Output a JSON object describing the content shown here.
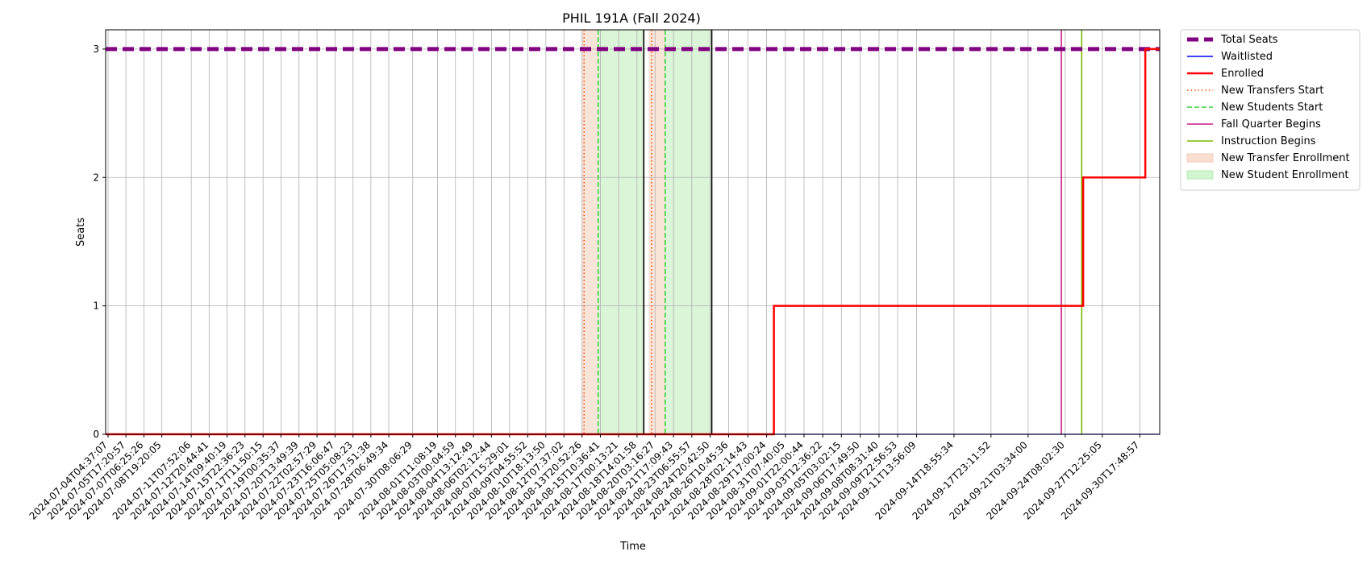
{
  "chart_data": {
    "type": "line",
    "title": "PHIL 191A (Fall 2024)",
    "xlabel": "Time",
    "ylabel": "Seats",
    "ylim": [
      0,
      3.15
    ],
    "yticks": [
      0,
      1,
      2,
      3
    ],
    "xlim": [
      "2024-07-03T23:35:00",
      "2024-10-02T10:40:00"
    ],
    "grid": true,
    "legend_position": "outside-top-right",
    "xtick_labels": [
      "2024-07-04T04:37:07",
      "2024-07-05T17:20:57",
      "2024-07-07T06:25:26",
      "2024-07-08T19:20:05",
      "2024-07-11T07:52:06",
      "2024-07-12T20:44:41",
      "2024-07-14T09:40:19",
      "2024-07-15T22:36:23",
      "2024-07-17T11:50:15",
      "2024-07-19T00:35:37",
      "2024-07-20T13:49:39",
      "2024-07-22T02:57:29",
      "2024-07-23T16:06:47",
      "2024-07-25T05:08:23",
      "2024-07-26T17:51:38",
      "2024-07-28T06:49:34",
      "2024-07-30T08:06:29",
      "2024-08-01T11:08:19",
      "2024-08-03T00:04:59",
      "2024-08-04T13:12:49",
      "2024-08-06T02:12:44",
      "2024-08-07T15:29:01",
      "2024-08-09T04:55:52",
      "2024-08-10T18:13:50",
      "2024-08-12T07:37:02",
      "2024-08-13T20:52:26",
      "2024-08-15T10:36:41",
      "2024-08-17T00:13:21",
      "2024-08-18T14:01:58",
      "2024-08-20T03:16:27",
      "2024-08-21T17:09:43",
      "2024-08-23T06:55:57",
      "2024-08-24T20:42:50",
      "2024-08-26T10:45:36",
      "2024-08-28T02:14:43",
      "2024-08-29T17:00:24",
      "2024-08-31T07:40:05",
      "2024-09-01T22:00:44",
      "2024-09-03T12:36:22",
      "2024-09-05T03:02:15",
      "2024-09-06T17:49:50",
      "2024-09-08T08:31:40",
      "2024-09-09T22:56:53",
      "2024-09-11T13:56:09",
      "2024-09-14T18:55:34",
      "2024-09-17T23:11:52",
      "2024-09-21T03:34:00",
      "2024-09-24T08:02:30",
      "2024-09-27T12:25:05",
      "2024-09-30T17:48:57"
    ],
    "series": [
      {
        "name": "Total Seats",
        "color": "#800080",
        "style": "dashed-thick",
        "x": [
          "2024-07-03T23:35:00",
          "2024-10-02T10:40:00"
        ],
        "y": [
          3,
          3
        ]
      },
      {
        "name": "Waitlisted",
        "color": "#0000ff",
        "style": "solid-thin",
        "x": [
          "2024-07-03T23:35:00",
          "2024-10-02T10:40:00"
        ],
        "y": [
          0,
          0
        ]
      },
      {
        "name": "Enrolled",
        "color": "#ff0000",
        "style": "step",
        "x": [
          "2024-07-03T23:35:00",
          "2024-08-30T08:00:00",
          "2024-09-25T21:00:00",
          "2024-10-01T05:00:00",
          "2024-10-02T10:40:00"
        ],
        "y": [
          0,
          1,
          2,
          3,
          3
        ]
      }
    ],
    "vlines": [
      {
        "name": "New Transfers Start",
        "color": "#ff4500",
        "style": "dotted",
        "x": "2024-08-14T01:00:00"
      },
      {
        "name": "New Transfers Start",
        "color": "#ff4500",
        "style": "dotted",
        "x": "2024-08-19T20:00:00"
      },
      {
        "name": "New Students Start",
        "color": "#32cd32",
        "style": "dashed",
        "x": "2024-08-15T06:00:00"
      },
      {
        "name": "New Students Start",
        "color": "#32cd32",
        "style": "dashed",
        "x": "2024-08-21T00:00:00"
      },
      {
        "name": "",
        "color": "#000000",
        "style": "solid",
        "x": "2024-08-19T04:00:00"
      },
      {
        "name": "",
        "color": "#000000",
        "style": "solid",
        "x": "2024-08-25T00:00:00"
      },
      {
        "name": "Fall Quarter Begins",
        "color": "#c71585",
        "style": "solid",
        "x": "2024-09-24T00:00:00"
      },
      {
        "name": "Instruction Begins",
        "color": "#7cba00",
        "style": "solid",
        "x": "2024-09-25T18:00:00"
      }
    ],
    "spans": [
      {
        "name": "New Transfer Enrollment",
        "color": "#f4c9b4",
        "x0": "2024-08-13T20:00:00",
        "x1": "2024-08-15T06:00:00"
      },
      {
        "name": "New Student Enrollment",
        "color": "#b6ecb0",
        "x0": "2024-08-15T06:00:00",
        "x1": "2024-08-19T04:00:00"
      },
      {
        "name": "New Transfer Enrollment",
        "color": "#f4c9b4",
        "x0": "2024-08-19T14:00:00",
        "x1": "2024-08-21T00:00:00"
      },
      {
        "name": "New Student Enrollment",
        "color": "#b6ecb0",
        "x0": "2024-08-21T00:00:00",
        "x1": "2024-08-25T00:00:00"
      }
    ],
    "legend": [
      {
        "label": "Total Seats",
        "color": "#800080",
        "kind": "thick-dash"
      },
      {
        "label": "Waitlisted",
        "color": "#0000ff",
        "kind": "line"
      },
      {
        "label": "Enrolled",
        "color": "#ff0000",
        "kind": "thick-line"
      },
      {
        "label": "New Transfers Start",
        "color": "#ff4500",
        "kind": "dotted"
      },
      {
        "label": "New Students Start",
        "color": "#32cd32",
        "kind": "dashed"
      },
      {
        "label": "Fall Quarter Begins",
        "color": "#c71585",
        "kind": "line"
      },
      {
        "label": "Instruction Begins",
        "color": "#7cba00",
        "kind": "line"
      },
      {
        "label": "New Transfer Enrollment",
        "color": "#f4c9b4",
        "kind": "patch"
      },
      {
        "label": "New Student Enrollment",
        "color": "#b6ecb0",
        "kind": "patch"
      }
    ]
  }
}
